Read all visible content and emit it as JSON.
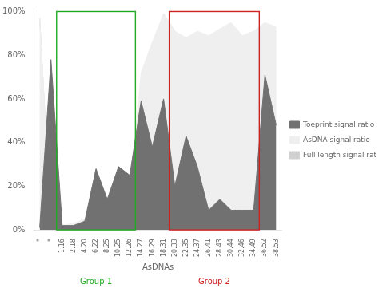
{
  "chart_data": {
    "type": "area",
    "categories": [
      "*",
      "*",
      "-1.16",
      "2.18",
      "4.20",
      "6.22",
      "8.25",
      "10.25",
      "12.26",
      "14.27",
      "16.29",
      "18.31",
      "20.33",
      "22.35",
      "24.37",
      "26.41",
      "28.43",
      "30.44",
      "32.46",
      "34.49",
      "36.52",
      "38.53"
    ],
    "series": [
      {
        "name": "Full length signal ratio",
        "color": "#d0d0d0",
        "values": [
          97,
          2,
          1,
          1,
          2,
          2,
          2,
          2,
          3,
          62,
          82,
          99,
          91,
          86,
          90,
          87,
          91,
          94,
          87,
          89,
          93,
          91
        ]
      },
      {
        "name": "AsDNA signal ratio",
        "color": "#efefef",
        "values": [
          97,
          3,
          2,
          3,
          5,
          12,
          9,
          14,
          16,
          72,
          86,
          99,
          91,
          88,
          91,
          89,
          92,
          95,
          89,
          91,
          95,
          93
        ]
      },
      {
        "name": "Toeprint signal ratio",
        "color": "#717171",
        "values": [
          1,
          78,
          2,
          2,
          4,
          28,
          14,
          29,
          25,
          59,
          38,
          60,
          20,
          43,
          29,
          9,
          14,
          9,
          9,
          9,
          71,
          48
        ]
      }
    ],
    "xlabel": "AsDNAs",
    "ylim": [
      0,
      102
    ],
    "yticks": [
      {
        "value": 0,
        "label": "0%"
      },
      {
        "value": 20,
        "label": "20%"
      },
      {
        "value": 40,
        "label": "40%"
      },
      {
        "value": 60,
        "label": "60%"
      },
      {
        "value": 80,
        "label": "80%"
      },
      {
        "value": 100,
        "label": "100%"
      }
    ],
    "grid": false,
    "stacked": false,
    "legend": "right",
    "groups": [
      {
        "label": "Group 1",
        "color": "#22aa22",
        "start": "-1.16",
        "end": "12.26",
        "top": 100
      },
      {
        "label": "Group 2",
        "color": "#cc2222",
        "start": "20.33",
        "end": "34.49",
        "top": 100
      }
    ]
  }
}
